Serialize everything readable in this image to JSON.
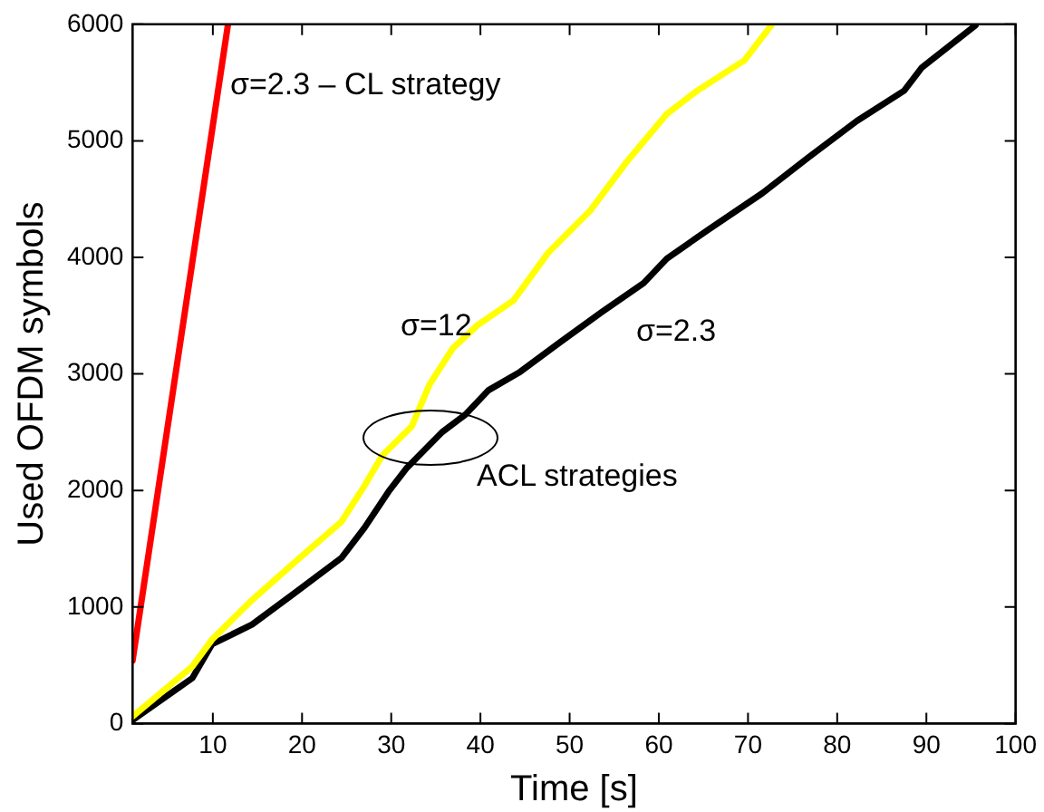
{
  "chart_data": {
    "type": "line",
    "xlabel": "Time [s]",
    "ylabel": "Used OFDM symbols",
    "xlim": [
      1,
      100
    ],
    "xticks": [
      10,
      20,
      30,
      40,
      50,
      60,
      70,
      80,
      90,
      100
    ],
    "ylim": [
      0,
      6000
    ],
    "yticks": [
      0,
      1000,
      2000,
      3000,
      4000,
      5000,
      6000
    ],
    "grid": false,
    "legend": false,
    "marker": "none",
    "line_style": "solid",
    "series": [
      {
        "color": "#ff0000",
        "x": [
          1,
          11.7
        ],
        "values": [
          540,
          6000
        ]
      },
      {
        "color": "#ffff00",
        "x": [
          1,
          7.7,
          9.9,
          14.4,
          19.7,
          24.4,
          27,
          29,
          32.3,
          34.3,
          36.9,
          39.7,
          43.7,
          47.6,
          52.3,
          56.3,
          60.9,
          64.3,
          69.6,
          72.6
        ],
        "values": [
          60,
          490,
          720,
          1060,
          1420,
          1730,
          2040,
          2300,
          2550,
          2910,
          3220,
          3420,
          3630,
          4040,
          4400,
          4810,
          5230,
          5430,
          5690,
          5990
        ]
      },
      {
        "color": "#000000",
        "x": [
          1,
          7.7,
          9.9,
          14.4,
          19,
          24.4,
          27,
          29.7,
          31.7,
          35.7,
          38.3,
          40.9,
          44.3,
          48.9,
          53.6,
          58.3,
          60.9,
          65.6,
          71.6,
          76.8,
          82.2,
          87.5,
          89.5,
          95.5
        ],
        "values": [
          30,
          390,
          680,
          850,
          1110,
          1420,
          1680,
          1990,
          2190,
          2500,
          2650,
          2860,
          3010,
          3270,
          3530,
          3780,
          3990,
          4240,
          4550,
          4860,
          5170,
          5430,
          5630,
          5990
        ]
      }
    ],
    "annotations": [
      "σ=2.3 – CL strategy",
      "σ=12",
      "σ=2.3",
      "ACL strategies"
    ]
  }
}
